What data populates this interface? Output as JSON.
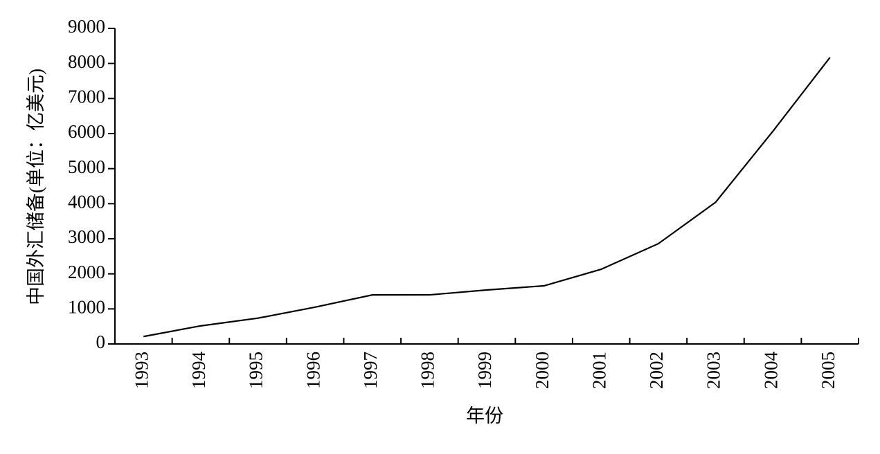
{
  "chart_data": {
    "type": "line",
    "x_label": "年份",
    "y_label": "中国外汇储备(单位：亿美元)",
    "categories": [
      "1993",
      "1994",
      "1995",
      "1996",
      "1997",
      "1998",
      "1999",
      "2000",
      "2001",
      "2002",
      "2003",
      "2004",
      "2005"
    ],
    "values": [
      212,
      516,
      736,
      1050,
      1399,
      1400,
      1540,
      1658,
      2130,
      2860,
      4040,
      6060,
      8170
    ],
    "color": "#000000",
    "ylim": [
      0,
      9000
    ],
    "yticks": [
      0,
      1000,
      2000,
      3000,
      4000,
      5000,
      6000,
      7000,
      8000,
      9000
    ],
    "grid": false
  }
}
